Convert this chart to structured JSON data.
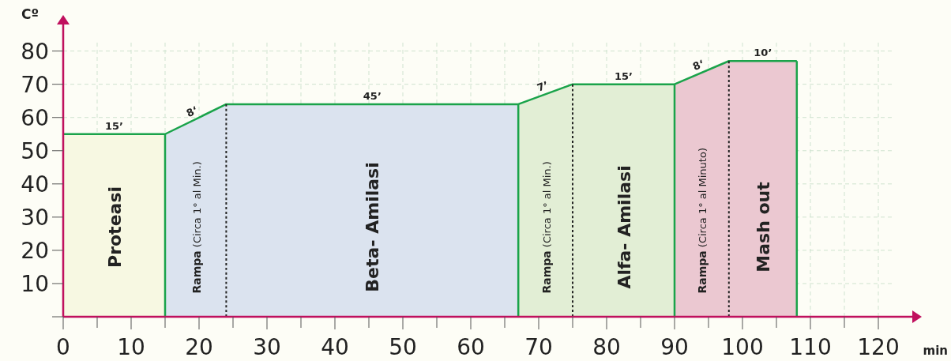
{
  "chart_data": {
    "type": "area",
    "ylabel": "Cº",
    "xlabel": "min",
    "xlim": [
      0,
      125
    ],
    "ylim": [
      0,
      88
    ],
    "xticks": [
      0,
      {
        "value": 5,
        "label": null
      },
      10,
      {
        "value": 15,
        "label": null
      },
      20,
      {
        "value": 25,
        "label": null
      },
      30,
      {
        "value": 35,
        "label": null
      },
      40,
      {
        "value": 45,
        "label": null
      },
      50,
      {
        "value": 55,
        "label": null
      },
      60,
      {
        "value": 65,
        "label": null
      },
      70,
      {
        "value": 75,
        "label": null
      },
      80,
      {
        "value": 85,
        "label": null
      },
      90,
      {
        "value": 95,
        "label": null
      },
      100,
      {
        "value": 105,
        "label": null
      },
      110,
      {
        "value": 115,
        "label": null
      },
      120
    ],
    "yticks": [
      {
        "value": 0,
        "label": null
      },
      10,
      20,
      30,
      40,
      50,
      60,
      70,
      80
    ],
    "grid": true,
    "series": [
      {
        "name": "Proteasi",
        "color": "#f7f8e2",
        "x": [
          0,
          15
        ],
        "values": [
          55,
          55
        ]
      },
      {
        "name": "Rampa (Circa 1° al Min.)",
        "color": "#dbe3ef",
        "x": [
          15,
          24
        ],
        "values": [
          55,
          64
        ]
      },
      {
        "name": "Beta- Amilasi",
        "color": "#dbe3ef",
        "x": [
          24,
          67
        ],
        "values": [
          64,
          64
        ]
      },
      {
        "name": "Rampa (Circa 1° al Min.)",
        "color": "#e2eed5",
        "x": [
          67,
          75
        ],
        "values": [
          64,
          70
        ]
      },
      {
        "name": "Alfa- Amilasi",
        "color": "#e2eed5",
        "x": [
          75,
          90
        ],
        "values": [
          70,
          70
        ]
      },
      {
        "name": "Rampa (Circa 1° al Minuto)",
        "color": "#ebc8d1",
        "x": [
          90,
          98
        ],
        "values": [
          70,
          77
        ]
      },
      {
        "name": "Mash out",
        "color": "#ebc8d1",
        "x": [
          98,
          108
        ],
        "values": [
          77,
          77
        ]
      },
      {
        "type": "line",
        "color": "#1aa34a",
        "x": [
          0,
          15,
          24,
          67,
          75,
          90,
          98,
          108
        ],
        "values": [
          55,
          55,
          64,
          64,
          70,
          70,
          77,
          77
        ]
      },
      {
        "type": "line",
        "color": "#1aa34a",
        "x": [
          15,
          15
        ],
        "values": [
          0,
          55
        ]
      },
      {
        "type": "line",
        "color": "#1aa34a",
        "x": [
          67,
          67
        ],
        "values": [
          0,
          64
        ]
      },
      {
        "type": "line",
        "color": "#1aa34a",
        "x": [
          90,
          90
        ],
        "values": [
          0,
          70
        ]
      },
      {
        "type": "line",
        "color": "#1aa34a",
        "x": [
          108,
          108
        ],
        "values": [
          0,
          77
        ]
      },
      {
        "type": "line",
        "color": "#222222",
        "line_style": "dotted",
        "x": [
          24,
          24
        ],
        "values": [
          0,
          64
        ]
      },
      {
        "type": "line",
        "color": "#222222",
        "line_style": "dotted",
        "x": [
          75,
          75
        ],
        "values": [
          0,
          70
        ]
      },
      {
        "type": "line",
        "color": "#222222",
        "line_style": "dotted",
        "x": [
          98,
          98
        ],
        "values": [
          0,
          77
        ]
      }
    ],
    "annotations": [
      {
        "text": "15’",
        "x": 7.5,
        "y": 55
      },
      {
        "text": "8‘",
        "x": 19.5,
        "y": 59.5
      },
      {
        "text": "45’",
        "x": 45.5,
        "y": 64
      },
      {
        "text": "7’",
        "x": 71,
        "y": 67
      },
      {
        "text": "15’",
        "x": 82.5,
        "y": 70
      },
      {
        "text": "8‘",
        "x": 94,
        "y": 73.5
      },
      {
        "text": "10’",
        "x": 103,
        "y": 77
      }
    ]
  }
}
